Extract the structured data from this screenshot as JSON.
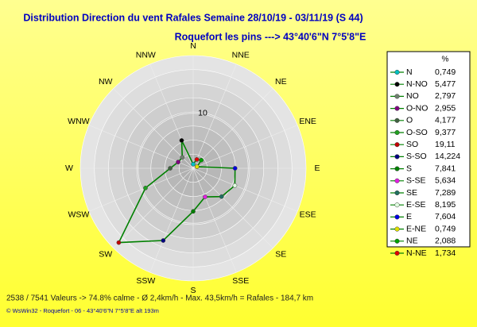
{
  "chart_data": {
    "type": "radar",
    "title": "Distribution Direction du vent Rafales  Semaine 28/10/19 - 03/11/19 (S 44)",
    "subtitle": "Roquefort les pins    --->  43°40'6\"N 7°5'8\"E",
    "directions": [
      "N",
      "NNE",
      "NE",
      "ENE",
      "E",
      "ESE",
      "SE",
      "SSE",
      "S",
      "SSW",
      "SW",
      "WSW",
      "W",
      "WNW",
      "NW",
      "NNW"
    ],
    "categories": [
      "N",
      "N-NO",
      "NO",
      "O-NO",
      "O",
      "O-SO",
      "SO",
      "S-SO",
      "S",
      "S-SE",
      "SE",
      "E-SE",
      "E",
      "E-NE",
      "NE",
      "N-NE"
    ],
    "values": [
      0.749,
      5.477,
      2.797,
      2.955,
      4.177,
      9.377,
      19.11,
      14.224,
      7.841,
      5.634,
      7.289,
      8.195,
      7.604,
      0.749,
      2.088,
      1.734
    ],
    "value_labels": [
      "0,749",
      "5,477",
      "2,797",
      "2,955",
      "4,177",
      "9,377",
      "19,11",
      "14,224",
      "7,841",
      "5,634",
      "7,289",
      "8,195",
      "7,604",
      "0,749",
      "2,088",
      "1,734"
    ],
    "colors": [
      "#00c0c0",
      "#000000",
      "#708070",
      "#800080",
      "#406040",
      "#20a020",
      "#c00000",
      "#000080",
      "#008000",
      "#e020e0",
      "#207060",
      "#e0ffe0",
      "#0000e0",
      "#e0e000",
      "#00a000",
      "#e00000"
    ],
    "line_color": "#008000",
    "rlim": [
      0,
      20.5
    ],
    "rticks": [
      10
    ],
    "legend_title": "%",
    "footer": "2538 / 7541 Valeurs  -> 74.8% calme   -   Ø 2,4km/h  -  Max. 43,5km/h = Rafales   -    184,7 km",
    "credit": "© WsWin32  -  Roquefort - 06  -  43°40'6\"N 7°5'8\"E alt 193m"
  }
}
